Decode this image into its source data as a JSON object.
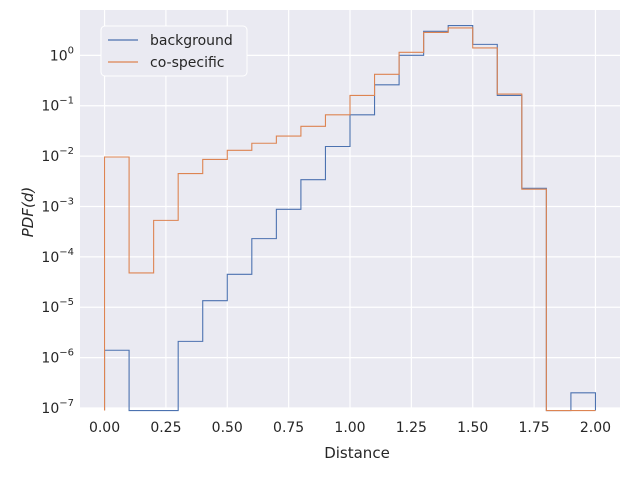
{
  "chart_data": {
    "type": "step-histogram",
    "title": "",
    "xlabel": "Distance",
    "ylabel": "PDF(d)",
    "xlim": [
      -0.1,
      2.1
    ],
    "ylim_exponent": [
      -7,
      0.9
    ],
    "yscale": "log",
    "grid": true,
    "legend_position": "top-left",
    "x_ticks": [
      "0.00",
      "0.25",
      "0.50",
      "0.75",
      "1.00",
      "1.25",
      "1.50",
      "1.75",
      "2.00"
    ],
    "y_ticks": [
      {
        "base": "10",
        "exp": "0"
      },
      {
        "base": "10",
        "exp": "−1"
      },
      {
        "base": "10",
        "exp": "−2"
      },
      {
        "base": "10",
        "exp": "−3"
      },
      {
        "base": "10",
        "exp": "−4"
      },
      {
        "base": "10",
        "exp": "−5"
      },
      {
        "base": "10",
        "exp": "−6"
      },
      {
        "base": "10",
        "exp": "−7"
      }
    ],
    "bin_edges": [
      0,
      0.1,
      0.2,
      0.3,
      0.4,
      0.5,
      0.6,
      0.7,
      0.8,
      0.9,
      1.0,
      1.1,
      1.2,
      1.3,
      1.4,
      1.5,
      1.6,
      1.7,
      1.8,
      1.9,
      2.0
    ],
    "series": [
      {
        "name": "background",
        "color": "#4c72b0",
        "values": [
          1.4e-06,
          0,
          0,
          2.1e-06,
          1.35e-05,
          4.5e-05,
          0.00023,
          0.00088,
          0.0034,
          0.0155,
          0.066,
          0.26,
          1.0,
          3.0,
          3.9,
          1.65,
          0.16,
          0.0023,
          0,
          2e-07
        ]
      },
      {
        "name": "co-specific",
        "color": "#dd8452",
        "values": [
          0.0096,
          4.8e-05,
          0.00053,
          0.0045,
          0.0086,
          0.013,
          0.018,
          0.025,
          0.039,
          0.066,
          0.16,
          0.42,
          1.15,
          2.85,
          3.5,
          1.4,
          0.17,
          0.0022,
          0,
          0
        ]
      }
    ]
  }
}
